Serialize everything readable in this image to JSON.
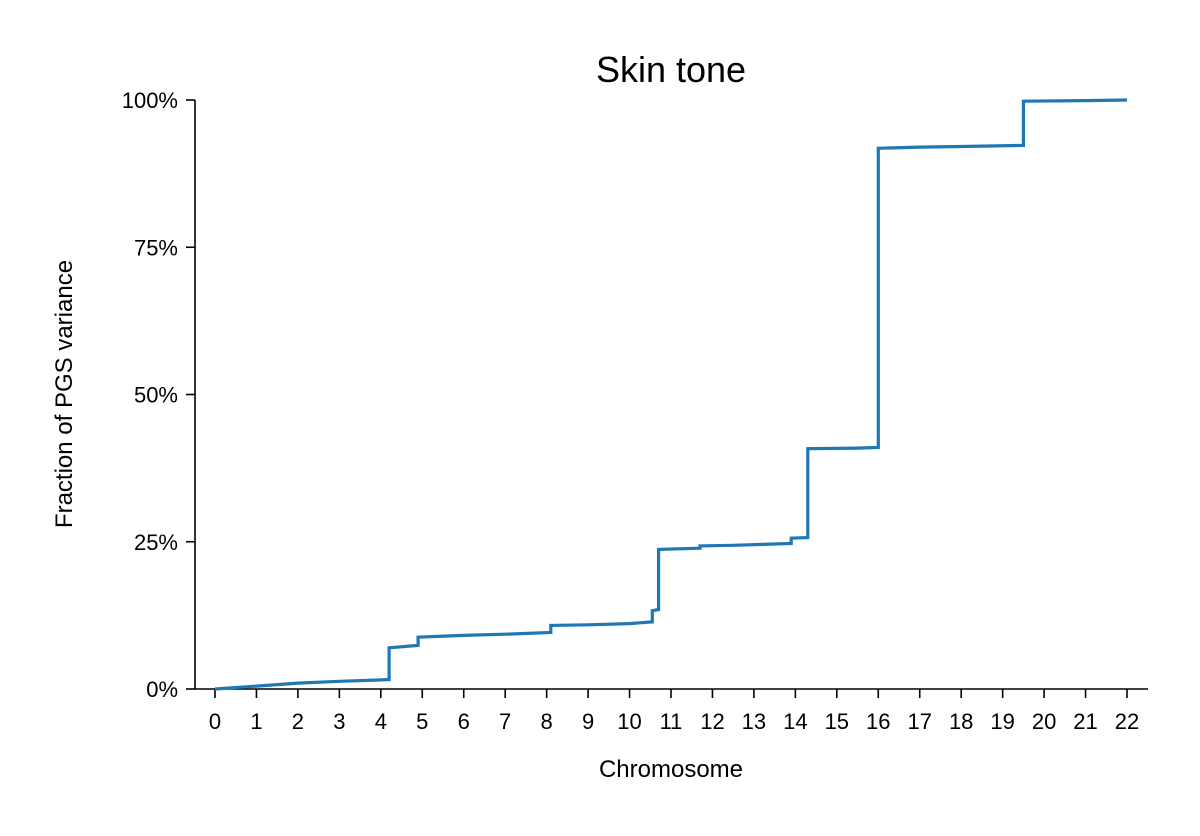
{
  "chart_data": {
    "type": "line",
    "title": "Skin tone",
    "xlabel": "Chromosome",
    "ylabel": "Fraction of PGS variance",
    "xlim": [
      0,
      22
    ],
    "ylim": [
      0,
      100
    ],
    "x_ticks": [
      "0",
      "1",
      "2",
      "3",
      "4",
      "5",
      "6",
      "7",
      "8",
      "9",
      "10",
      "11",
      "12",
      "13",
      "14",
      "15",
      "16",
      "17",
      "18",
      "19",
      "20",
      "21",
      "22"
    ],
    "y_ticks": [
      "0%",
      "25%",
      "50%",
      "75%",
      "100%"
    ],
    "y_tick_values": [
      0,
      25,
      50,
      75,
      100
    ],
    "grid": false,
    "legend": "none",
    "series": [
      {
        "color": "#1f77b4",
        "points": [
          [
            0,
            0
          ],
          [
            1,
            0.5
          ],
          [
            2,
            1.0
          ],
          [
            3,
            1.3
          ],
          [
            4.2,
            1.6
          ],
          [
            4.2,
            7.0
          ],
          [
            4.9,
            7.4
          ],
          [
            4.9,
            8.8
          ],
          [
            6,
            9.1
          ],
          [
            7,
            9.3
          ],
          [
            8.1,
            9.6
          ],
          [
            8.1,
            10.8
          ],
          [
            9,
            10.9
          ],
          [
            10,
            11.1
          ],
          [
            10.55,
            11.4
          ],
          [
            10.55,
            13.3
          ],
          [
            10.7,
            13.5
          ],
          [
            10.7,
            23.7
          ],
          [
            11.7,
            23.9
          ],
          [
            11.7,
            24.3
          ],
          [
            12.5,
            24.4
          ],
          [
            13.9,
            24.7
          ],
          [
            13.9,
            25.6
          ],
          [
            14.3,
            25.7
          ],
          [
            14.3,
            40.8
          ],
          [
            15.5,
            40.9
          ],
          [
            16,
            41.0
          ],
          [
            16,
            91.8
          ],
          [
            17,
            92.0
          ],
          [
            18,
            92.1
          ],
          [
            19.5,
            92.3
          ],
          [
            19.5,
            99.8
          ],
          [
            21,
            99.9
          ],
          [
            22,
            100
          ]
        ]
      }
    ]
  }
}
